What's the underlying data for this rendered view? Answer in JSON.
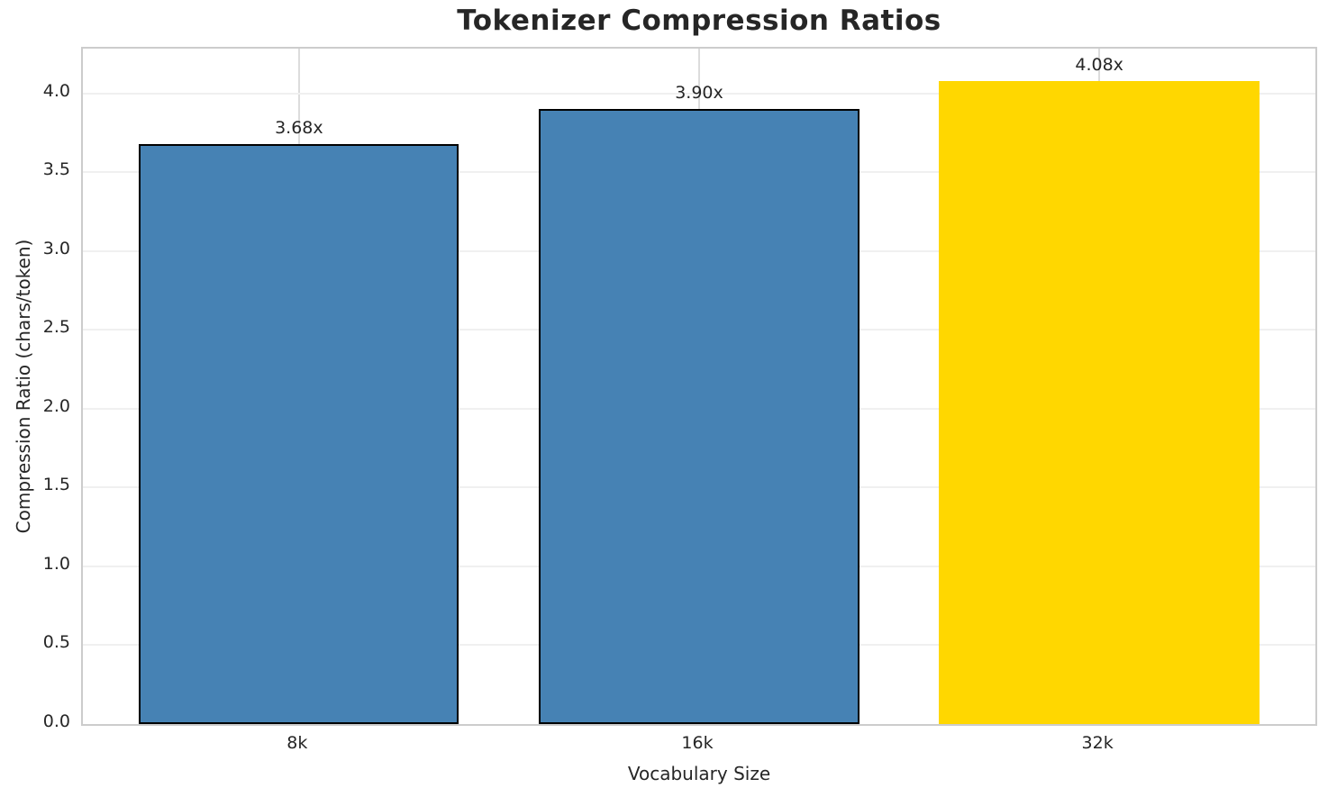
{
  "title": "Tokenizer Compression Ratios",
  "chart_data": {
    "type": "bar",
    "title": "Tokenizer Compression Ratios",
    "xlabel": "Vocabulary Size",
    "ylabel": "Compression Ratio (chars/token)",
    "categories": [
      "8k",
      "16k",
      "32k"
    ],
    "values": [
      3.68,
      3.9,
      4.08
    ],
    "bar_labels": [
      "3.68x",
      "3.90x",
      "4.08x"
    ],
    "bar_colors": [
      "#4682b4",
      "#4682b4",
      "#ffd700"
    ],
    "bar_edge_colors": [
      "#000000",
      "#000000",
      "none"
    ],
    "ylim": [
      0,
      4.284
    ],
    "xlim": [
      -0.54,
      2.54
    ],
    "bar_width": 0.8,
    "yticks": [
      0.0,
      0.5,
      1.0,
      1.5,
      2.0,
      2.5,
      3.0,
      3.5,
      4.0
    ],
    "ytick_labels": [
      "0.0",
      "0.5",
      "1.0",
      "1.5",
      "2.0",
      "2.5",
      "3.0",
      "3.5",
      "4.0"
    ],
    "grid": true,
    "legend": null,
    "colors": {
      "grid_horizontal": "#f0f0f0",
      "grid_vertical": "#dcdcdc",
      "spine": "#cccccc",
      "text": "#262626",
      "bar_blue": "#4682b4",
      "bar_highlight_gold": "#ffd700"
    }
  }
}
